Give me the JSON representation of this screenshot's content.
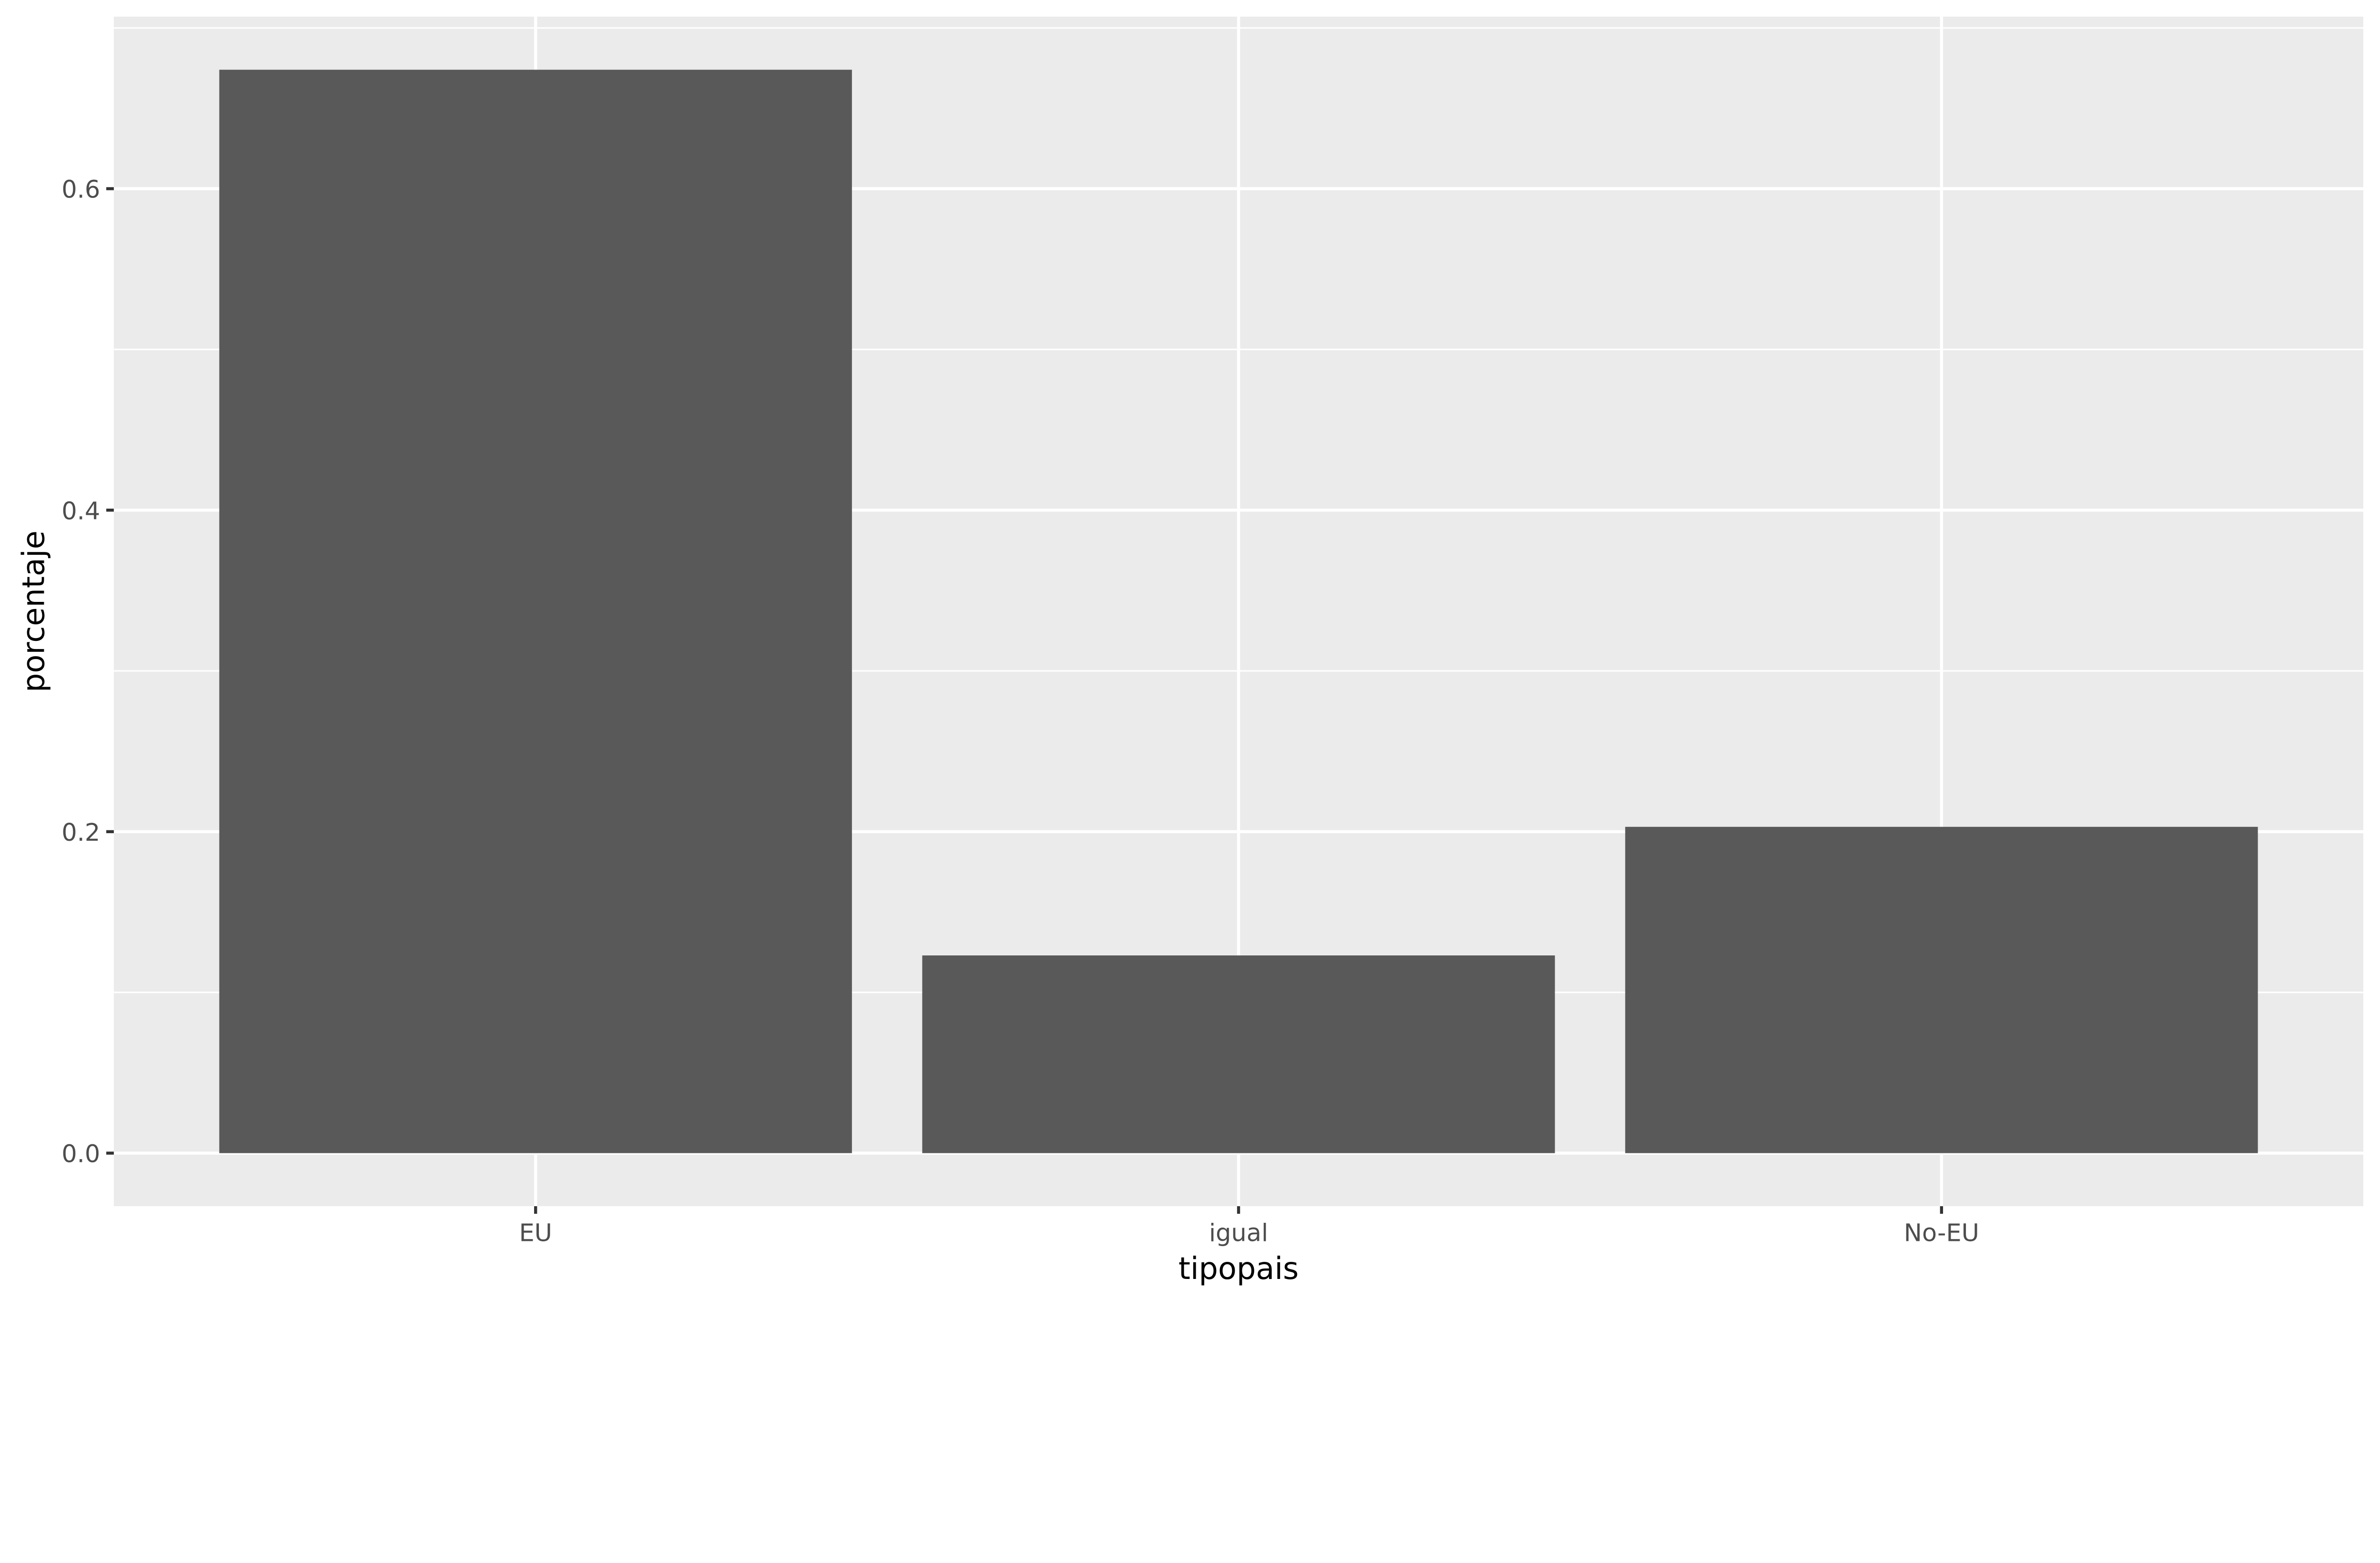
{
  "chart_data": {
    "type": "bar",
    "title": "",
    "xlabel": "tipopais",
    "ylabel": "porcentaje",
    "categories": [
      "EU",
      "igual",
      "No-EU"
    ],
    "values": [
      0.674,
      0.123,
      0.203
    ],
    "ylim": [
      -0.033,
      0.707
    ],
    "yticks": [
      0.0,
      0.2,
      0.4,
      0.6
    ],
    "ytick_labels": [
      "0.0",
      "0.2",
      "0.4",
      "0.6"
    ],
    "grid": true,
    "colors": {
      "bar": "#595959",
      "panel": "#EBEBEB",
      "grid": "#FFFFFF",
      "text": "#4D4D4D"
    }
  }
}
